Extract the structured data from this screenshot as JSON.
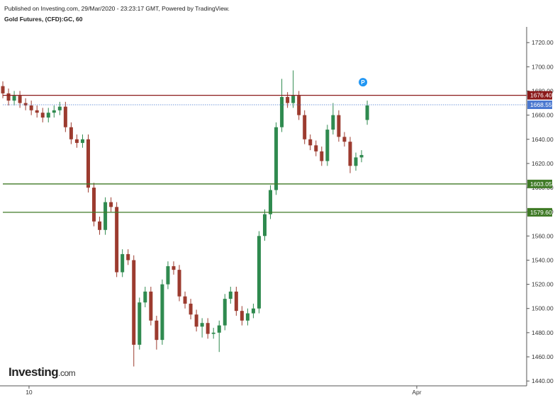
{
  "header": {
    "published": "Published on Investing.com, 29/Mar/2020 - 23:23:17 GMT, Powered by TradingView.",
    "logo": "Investing",
    "logo_suffix": ".com"
  },
  "chart_data": {
    "type": "candlestick",
    "title": "Gold Futures, (CFD):GC, 60",
    "x": [
      0,
      1,
      2,
      3,
      4,
      5,
      6,
      7,
      8,
      9,
      10,
      11,
      12,
      13,
      14,
      15,
      16,
      17,
      18,
      19,
      20,
      21,
      22,
      23,
      24,
      25,
      26,
      27,
      28,
      29,
      30,
      31,
      32,
      33,
      34,
      35,
      36,
      37,
      38,
      39,
      40,
      41,
      42,
      43,
      44,
      45,
      46,
      47,
      48,
      49,
      50,
      51,
      52,
      53,
      54,
      55,
      56,
      57,
      58,
      59,
      60,
      61,
      62,
      63,
      64
    ],
    "open": [
      1684,
      1678,
      1672,
      1676,
      1670,
      1668,
      1664,
      1662,
      1658,
      1662,
      1664,
      1667,
      1650,
      1640,
      1637,
      1640,
      1600,
      1572,
      1565,
      1588,
      1584,
      1530,
      1545,
      1540,
      1470,
      1505,
      1514,
      1490,
      1474,
      1520,
      1535,
      1532,
      1510,
      1504,
      1495,
      1485,
      1488,
      1479,
      1480,
      1486,
      1508,
      1514,
      1498,
      1490,
      1496,
      1500,
      1560,
      1578,
      1598,
      1650,
      1675,
      1670,
      1676,
      1660,
      1640,
      1635,
      1630,
      1622,
      1648,
      1660,
      1642,
      1638,
      1618,
      1625,
      1656
    ],
    "high": [
      1688,
      1682,
      1680,
      1680,
      1674,
      1672,
      1668,
      1666,
      1666,
      1668,
      1671,
      1671,
      1654,
      1644,
      1644,
      1644,
      1604,
      1576,
      1592,
      1592,
      1588,
      1549,
      1549,
      1544,
      1509,
      1518,
      1518,
      1494,
      1524,
      1539,
      1539,
      1536,
      1514,
      1508,
      1499,
      1492,
      1492,
      1484,
      1490,
      1512,
      1518,
      1518,
      1502,
      1500,
      1504,
      1564,
      1582,
      1602,
      1654,
      1690,
      1679,
      1697,
      1680,
      1664,
      1644,
      1639,
      1634,
      1652,
      1670,
      1664,
      1646,
      1642,
      1629,
      1631,
      1672
    ],
    "low": [
      1674,
      1668,
      1668,
      1666,
      1664,
      1660,
      1658,
      1654,
      1654,
      1658,
      1660,
      1646,
      1636,
      1633,
      1633,
      1596,
      1568,
      1561,
      1561,
      1580,
      1526,
      1526,
      1536,
      1452,
      1466,
      1501,
      1486,
      1466,
      1470,
      1516,
      1528,
      1506,
      1500,
      1491,
      1481,
      1476,
      1475,
      1475,
      1464,
      1482,
      1504,
      1494,
      1486,
      1486,
      1492,
      1496,
      1556,
      1574,
      1594,
      1646,
      1666,
      1666,
      1656,
      1636,
      1631,
      1626,
      1618,
      1618,
      1644,
      1638,
      1634,
      1612,
      1614,
      1621,
      1652
    ],
    "close": [
      1678,
      1672,
      1676,
      1670,
      1668,
      1664,
      1662,
      1658,
      1662,
      1664,
      1667,
      1650,
      1640,
      1637,
      1640,
      1600,
      1572,
      1565,
      1588,
      1584,
      1530,
      1545,
      1540,
      1470,
      1505,
      1514,
      1490,
      1474,
      1520,
      1535,
      1532,
      1510,
      1504,
      1495,
      1485,
      1488,
      1479,
      1480,
      1486,
      1508,
      1514,
      1498,
      1490,
      1496,
      1500,
      1560,
      1578,
      1598,
      1650,
      1675,
      1670,
      1676,
      1660,
      1640,
      1635,
      1630,
      1622,
      1648,
      1660,
      1642,
      1638,
      1618,
      1625,
      1627,
      1668
    ],
    "up_color": "#2f8a4f",
    "down_color": "#9c3b2f",
    "xlim": [
      0,
      92
    ],
    "xticks": [
      {
        "value": 4.6,
        "label": "10"
      },
      {
        "value": 72.7,
        "label": "Apr"
      }
    ],
    "ylim": [
      1436,
      1733
    ],
    "yticks": [
      {
        "value": 1440,
        "label": "1440.00"
      },
      {
        "value": 1460,
        "label": "1460.00"
      },
      {
        "value": 1480,
        "label": "1480.00"
      },
      {
        "value": 1500,
        "label": "1500.00"
      },
      {
        "value": 1520,
        "label": "1520.00"
      },
      {
        "value": 1540,
        "label": "1540.00"
      },
      {
        "value": 1560,
        "label": "1560.00"
      },
      {
        "value": 1580,
        "label": "1580.00"
      },
      {
        "value": 1600,
        "label": "1600.00"
      },
      {
        "value": 1620,
        "label": "1620.00"
      },
      {
        "value": 1640,
        "label": "1640.00"
      },
      {
        "value": 1660,
        "label": "1660.00"
      },
      {
        "value": 1680,
        "label": "1680.00"
      },
      {
        "value": 1700,
        "label": "1700.00"
      },
      {
        "value": 1720,
        "label": "1720.00"
      }
    ],
    "price_lines": [
      {
        "value": 1676.4,
        "label": "1676.40",
        "color": "#8b1a1a",
        "style": "solid"
      },
      {
        "value": 1668.55,
        "label": "1668.55",
        "color": "#4a78d0",
        "style": "dotted"
      },
      {
        "value": 1603.05,
        "label": "1603.05",
        "color": "#3f7a26",
        "style": "solid"
      },
      {
        "value": 1579.6,
        "label": "1579.60",
        "color": "#3f7a26",
        "style": "solid"
      }
    ],
    "marker": {
      "label": "P",
      "color": "#2196f3"
    }
  }
}
